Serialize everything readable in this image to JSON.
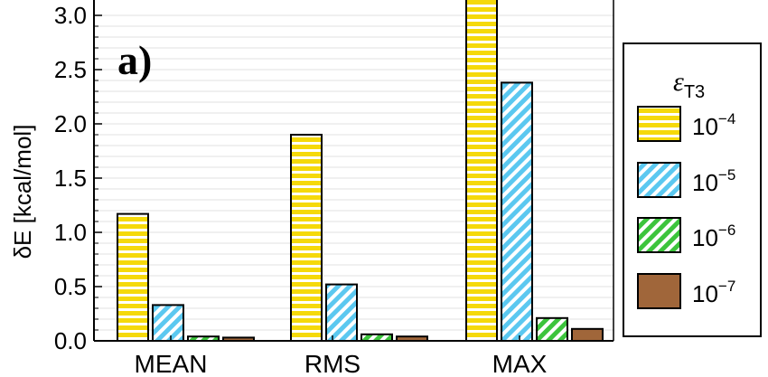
{
  "chart_data": {
    "type": "bar",
    "title": "",
    "panel_label": "a)",
    "xlabel": "",
    "ylabel": "δE [kcal/mol]",
    "ylim": [
      0,
      3.1
    ],
    "yticks": [
      "0.0",
      "0.5",
      "1.0",
      "1.5",
      "2.0",
      "2.5",
      "3.0"
    ],
    "grid": true,
    "categories": [
      "MEAN",
      "RMS",
      "MAX"
    ],
    "legend": {
      "placement": "right",
      "title_symbol": "ε",
      "title_subscript": "T3"
    },
    "series": [
      {
        "name_base": "10",
        "name_exp": "−4",
        "color": "#f5d90a",
        "pattern": "horizontal-stripes",
        "values": [
          1.17,
          1.9,
          3.15
        ]
      },
      {
        "name_base": "10",
        "name_exp": "−5",
        "color": "#5bc8f0",
        "pattern": "diagonal-stripes",
        "values": [
          0.33,
          0.52,
          2.38
        ]
      },
      {
        "name_base": "10",
        "name_exp": "−6",
        "color": "#3cc43c",
        "pattern": "diagonal-stripes",
        "values": [
          0.04,
          0.06,
          0.21
        ]
      },
      {
        "name_base": "10",
        "name_exp": "−7",
        "color": "#a0663a",
        "pattern": "solid",
        "values": [
          0.03,
          0.04,
          0.11
        ]
      }
    ]
  }
}
